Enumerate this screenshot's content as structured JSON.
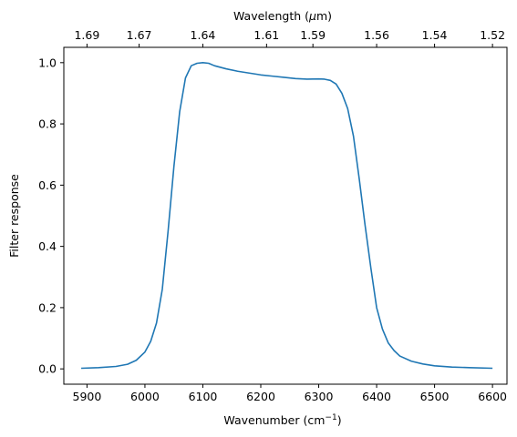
{
  "chart_data": {
    "type": "line",
    "xlabel_main": "Wavenumber (cm",
    "xlabel_sup": "−1",
    "xlabel_close": ")",
    "x2label_pre": "Wavelength (",
    "x2label_mu": "μ",
    "x2label_post": "m)",
    "ylabel": "Filter response",
    "xlim": [
      5860,
      6625
    ],
    "ylim": [
      -0.05,
      1.05
    ],
    "x_ticks": [
      5900,
      6000,
      6100,
      6200,
      6300,
      6400,
      6500,
      6600
    ],
    "x_tick_labels": [
      "5900",
      "6000",
      "6100",
      "6200",
      "6300",
      "6400",
      "6500",
      "6600"
    ],
    "y_ticks": [
      0.0,
      0.2,
      0.4,
      0.6,
      0.8,
      1.0
    ],
    "y_tick_labels": [
      "0.0",
      "0.2",
      "0.4",
      "0.6",
      "0.8",
      "1.0"
    ],
    "top_ticks_wavenumber": [
      5900,
      5990,
      6100,
      6210,
      6290,
      6400,
      6500,
      6600
    ],
    "top_tick_labels": [
      "1.69",
      "1.67",
      "1.64",
      "1.61",
      "1.59",
      "1.56",
      "1.54",
      "1.52"
    ],
    "series": [
      {
        "color": "#1f77b4",
        "x": [
          5890,
          5920,
          5950,
          5970,
          5985,
          6000,
          6010,
          6020,
          6030,
          6040,
          6050,
          6060,
          6070,
          6080,
          6090,
          6100,
          6110,
          6120,
          6140,
          6160,
          6180,
          6200,
          6220,
          6240,
          6260,
          6280,
          6300,
          6310,
          6320,
          6330,
          6340,
          6350,
          6360,
          6370,
          6380,
          6390,
          6400,
          6410,
          6420,
          6430,
          6440,
          6460,
          6480,
          6500,
          6530,
          6560,
          6600
        ],
        "y": [
          0.002,
          0.004,
          0.008,
          0.015,
          0.028,
          0.055,
          0.09,
          0.15,
          0.26,
          0.45,
          0.66,
          0.84,
          0.95,
          0.99,
          0.998,
          1.0,
          0.998,
          0.99,
          0.98,
          0.972,
          0.966,
          0.96,
          0.956,
          0.952,
          0.948,
          0.946,
          0.947,
          0.946,
          0.942,
          0.93,
          0.9,
          0.85,
          0.76,
          0.62,
          0.47,
          0.33,
          0.2,
          0.13,
          0.085,
          0.06,
          0.042,
          0.025,
          0.016,
          0.01,
          0.006,
          0.004,
          0.002
        ]
      }
    ]
  }
}
